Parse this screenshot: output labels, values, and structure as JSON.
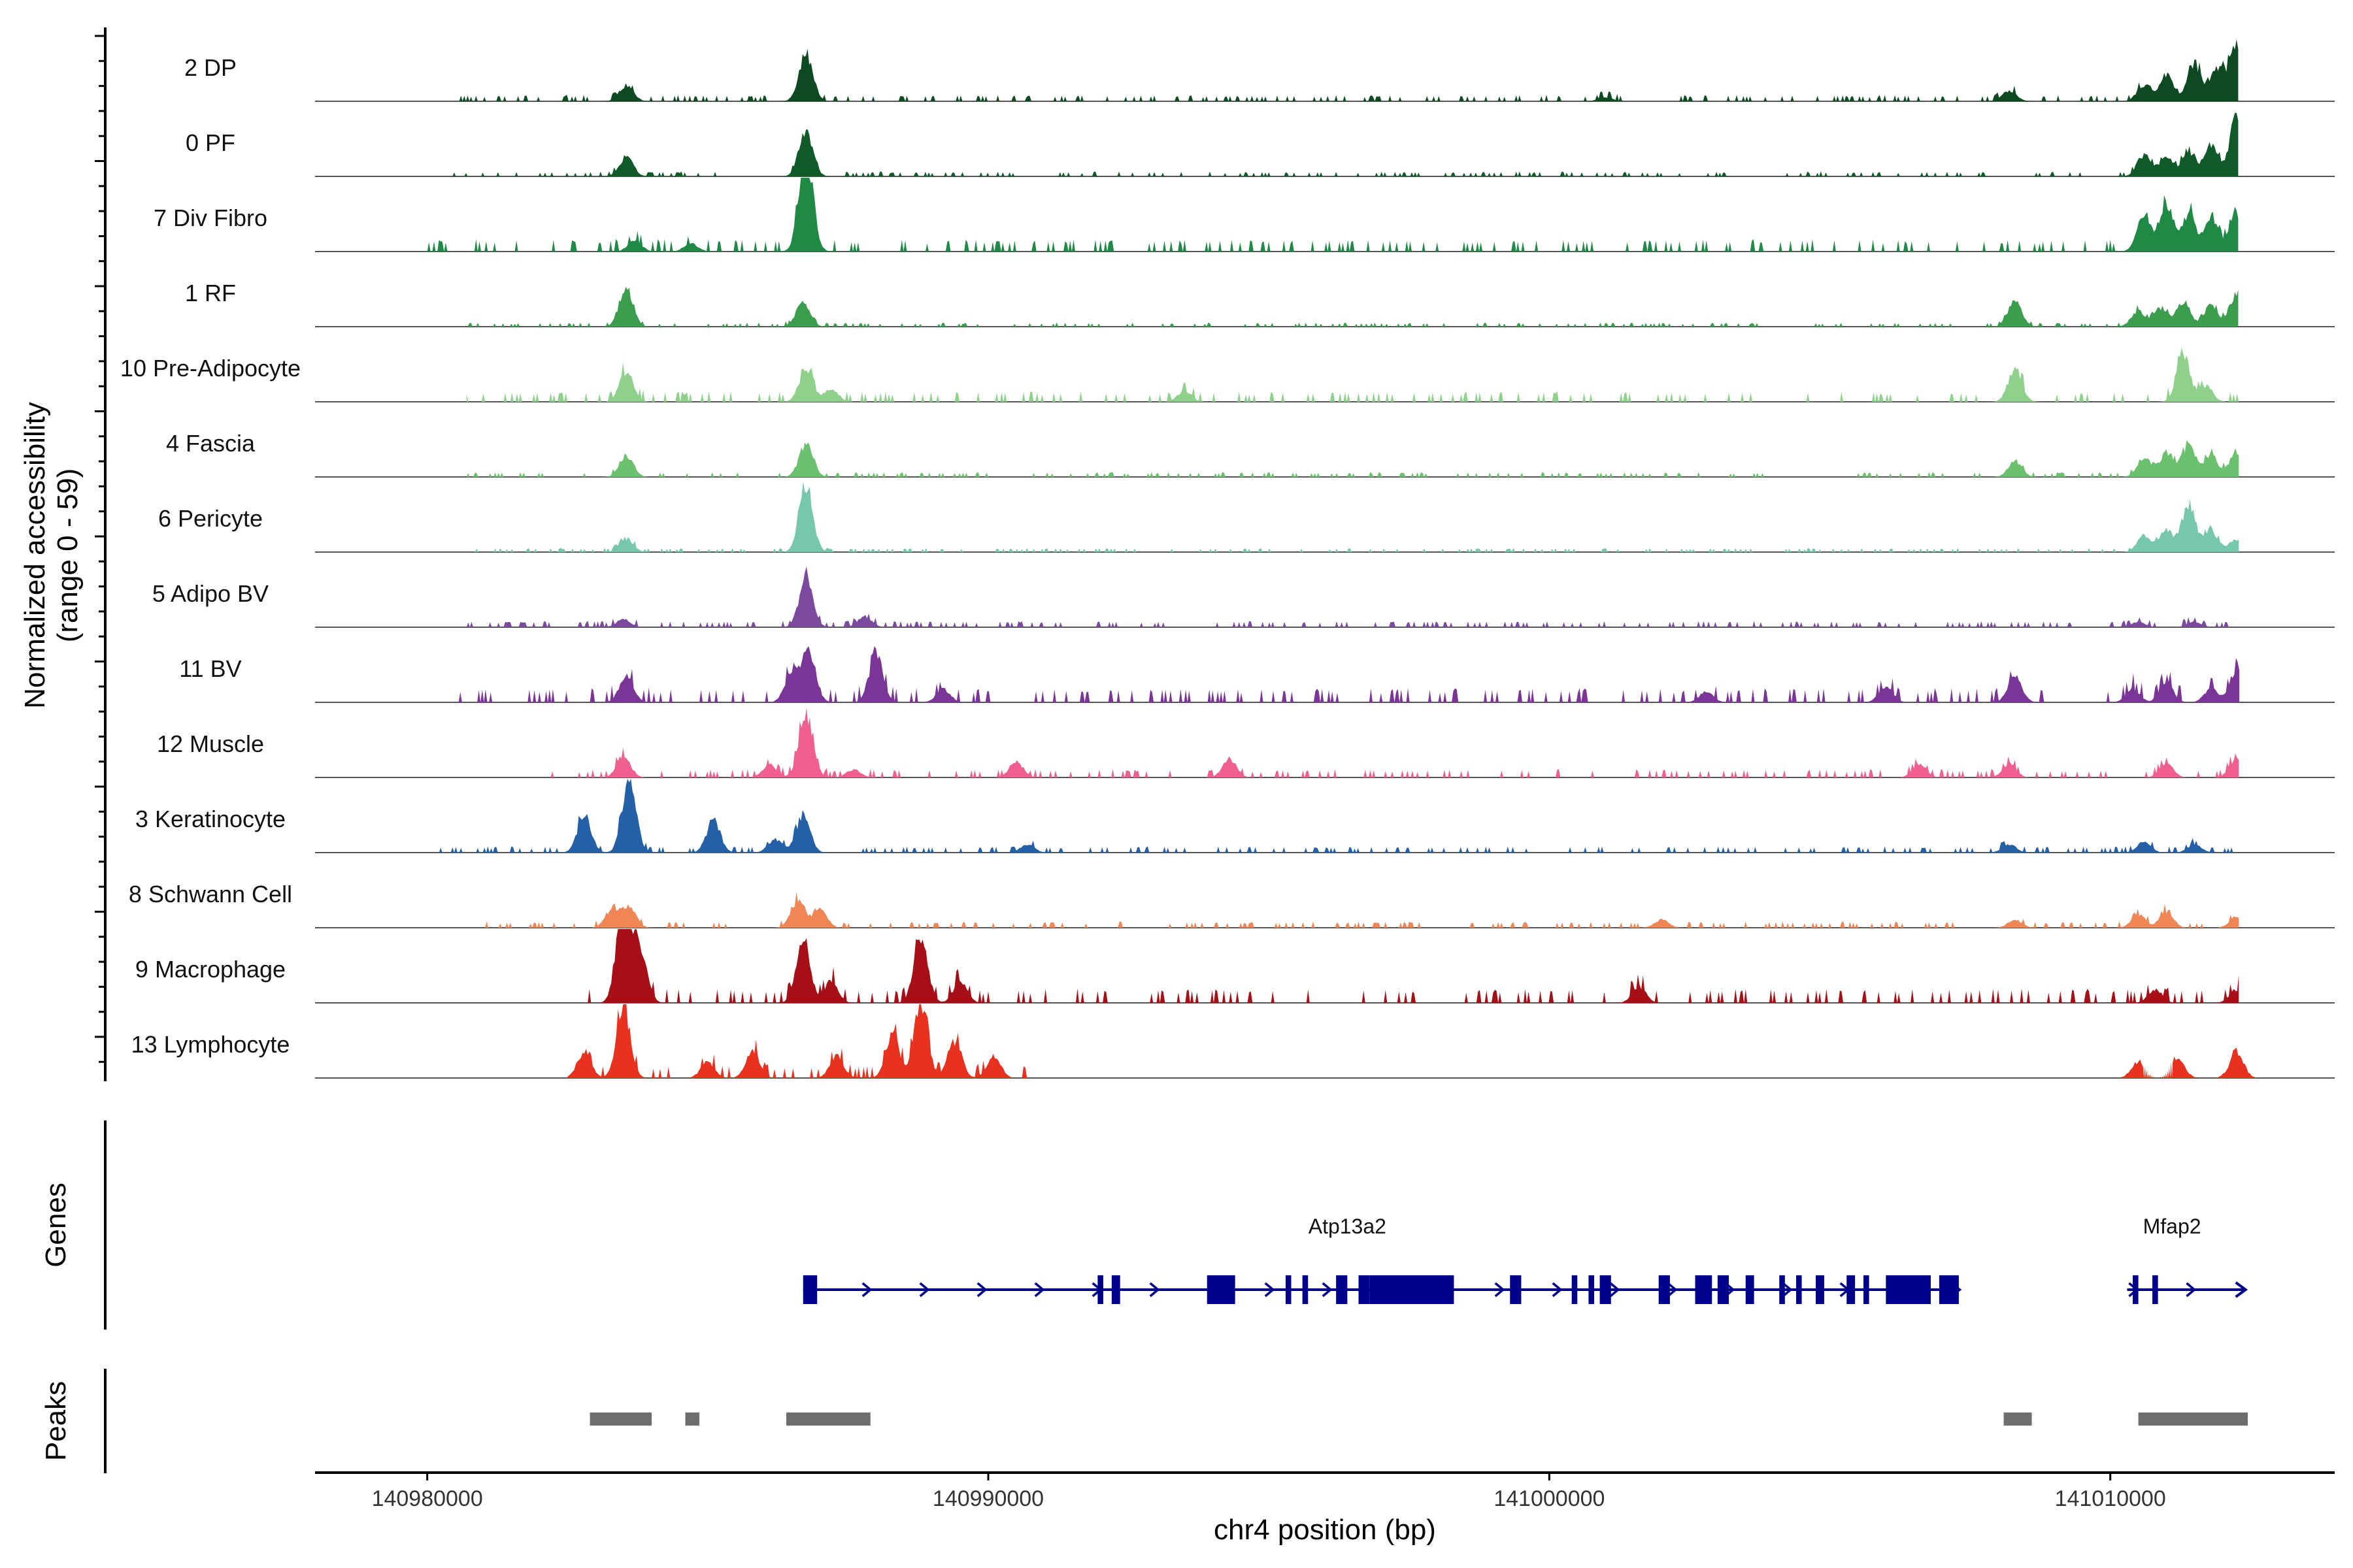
{
  "chart_data": {
    "type": "area",
    "title": "",
    "ylabel_line1": "Normalized accessibility",
    "ylabel_line2": "(range 0 - 59)",
    "y_range": [
      0,
      59
    ],
    "xlabel": "chr4 position (bp)",
    "xlim": [
      140978000,
      141014000
    ],
    "x_ticks": [
      140980000,
      140990000,
      141000000,
      141010000
    ],
    "x_tick_labels": [
      "140980000",
      "140990000",
      "141000000",
      "141010000"
    ],
    "genes_label": "Genes",
    "peaks_label": "Peaks",
    "tracks": [
      {
        "name": "2 DP",
        "color": "#0d4a21",
        "x_start": 140980300,
        "x_end": 141012300,
        "peaks": [
          [
            140983550,
            6
          ],
          [
            140986750,
            18
          ],
          [
            141001000,
            1.5
          ],
          [
            141008200,
            4
          ],
          [
            141010600,
            6
          ],
          [
            141011000,
            10
          ],
          [
            141011500,
            14
          ],
          [
            141011900,
            12
          ],
          [
            141012250,
            22
          ]
        ],
        "noise": 1.5
      },
      {
        "name": "0 PF",
        "color": "#0f5a28",
        "x_start": 140980300,
        "x_end": 141012300,
        "peaks": [
          [
            140983550,
            7
          ],
          [
            140986750,
            17
          ],
          [
            141010600,
            8
          ],
          [
            141011000,
            7
          ],
          [
            141011400,
            9
          ],
          [
            141011800,
            11
          ],
          [
            141012250,
            22
          ]
        ],
        "noise": 1.2
      },
      {
        "name": "7 Div Fibro",
        "color": "#1f8a45",
        "x_start": 140980000,
        "x_end": 141012300,
        "peaks": [
          [
            140983700,
            4
          ],
          [
            140986750,
            38
          ],
          [
            140984700,
            3
          ],
          [
            141010600,
            14
          ],
          [
            141011000,
            18
          ],
          [
            141011400,
            14
          ],
          [
            141011800,
            12
          ],
          [
            141012250,
            14
          ]
        ],
        "noise": 3
      },
      {
        "name": "1 RF",
        "color": "#3b9e4f",
        "x_start": 140980300,
        "x_end": 141012300,
        "peaks": [
          [
            140983550,
            14
          ],
          [
            140986700,
            9
          ],
          [
            141008300,
            10
          ],
          [
            141010500,
            6
          ],
          [
            141010900,
            7
          ],
          [
            141011300,
            9
          ],
          [
            141011800,
            8
          ],
          [
            141012250,
            12
          ]
        ],
        "noise": 1
      },
      {
        "name": "10 Pre-Adipocyte",
        "color": "#8fd18c",
        "x_start": 140980700,
        "x_end": 141012300,
        "peaks": [
          [
            140983550,
            11
          ],
          [
            140986750,
            12
          ],
          [
            140987200,
            5
          ],
          [
            141008300,
            12
          ],
          [
            141011300,
            16
          ],
          [
            141011700,
            6
          ],
          [
            140993500,
            4
          ]
        ],
        "noise": 2.5
      },
      {
        "name": "4 Fascia",
        "color": "#6cc16f",
        "x_start": 140980700,
        "x_end": 141012300,
        "peaks": [
          [
            140983550,
            8
          ],
          [
            140986750,
            12
          ],
          [
            141008300,
            6
          ],
          [
            141010600,
            7
          ],
          [
            141011000,
            9
          ],
          [
            141011400,
            12
          ],
          [
            141011800,
            8
          ],
          [
            141012250,
            9
          ]
        ],
        "noise": 1.2
      },
      {
        "name": "6 Pericyte",
        "color": "#76c7ae",
        "x_start": 140980700,
        "x_end": 141012300,
        "peaks": [
          [
            140983550,
            5
          ],
          [
            140986750,
            24
          ],
          [
            141010600,
            6
          ],
          [
            141011000,
            8
          ],
          [
            141011400,
            18
          ],
          [
            141011800,
            8
          ],
          [
            141012250,
            5
          ]
        ],
        "noise": 1
      },
      {
        "name": "5 Adipo BV",
        "color": "#7b4a9f",
        "x_start": 140980700,
        "x_end": 141012300,
        "peaks": [
          [
            140983500,
            3
          ],
          [
            140986750,
            18
          ],
          [
            140987800,
            4
          ],
          [
            141010500,
            2
          ],
          [
            141011500,
            2
          ]
        ],
        "noise": 1.5
      },
      {
        "name": "11 BV",
        "color": "#7a3596",
        "x_start": 140980200,
        "x_end": 141012300,
        "peaks": [
          [
            140983550,
            10
          ],
          [
            140986500,
            12
          ],
          [
            140986800,
            20
          ],
          [
            140988000,
            18
          ],
          [
            140989200,
            5
          ],
          [
            141002800,
            4
          ],
          [
            141006000,
            6
          ],
          [
            141008300,
            10
          ],
          [
            141010400,
            5
          ],
          [
            141011000,
            7
          ],
          [
            141011800,
            5
          ],
          [
            141012250,
            12
          ]
        ],
        "noise": 3.5
      },
      {
        "name": "12 Muscle",
        "color": "#f0608e",
        "x_start": 140982200,
        "x_end": 141012300,
        "peaks": [
          [
            140983500,
            8
          ],
          [
            140986100,
            5
          ],
          [
            140986750,
            24
          ],
          [
            140987600,
            3
          ],
          [
            140990500,
            6
          ],
          [
            140994300,
            7
          ],
          [
            141006600,
            5
          ],
          [
            141008200,
            5
          ],
          [
            141011000,
            5
          ],
          [
            141012250,
            7
          ]
        ],
        "noise": 2
      },
      {
        "name": "3 Keratinocyte",
        "color": "#2460a8",
        "x_start": 140980000,
        "x_end": 141012300,
        "peaks": [
          [
            140982800,
            14
          ],
          [
            140983600,
            28
          ],
          [
            140985100,
            12
          ],
          [
            140986200,
            5
          ],
          [
            140986700,
            14
          ],
          [
            140990700,
            3
          ],
          [
            141008200,
            3
          ],
          [
            141010600,
            4
          ],
          [
            141011500,
            3
          ]
        ],
        "noise": 1.5
      },
      {
        "name": "8 Schwann Cell",
        "color": "#ee8656",
        "x_start": 140980700,
        "x_end": 141012300,
        "peaks": [
          [
            140983300,
            7
          ],
          [
            140983600,
            8
          ],
          [
            140986600,
            10
          ],
          [
            140987000,
            7
          ],
          [
            141002000,
            3
          ],
          [
            141008300,
            3
          ],
          [
            141010500,
            5
          ],
          [
            141011000,
            6
          ],
          [
            141012250,
            4
          ]
        ],
        "noise": 1.5
      },
      {
        "name": "9 Macrophage",
        "color": "#a50f15",
        "x_start": 140982800,
        "x_end": 141012300,
        "peaks": [
          [
            140983500,
            42
          ],
          [
            140983800,
            20
          ],
          [
            140986700,
            24
          ],
          [
            140987200,
            8
          ],
          [
            140988800,
            24
          ],
          [
            140989500,
            8
          ],
          [
            141001600,
            6
          ],
          [
            141010800,
            5
          ],
          [
            141012250,
            5
          ]
        ],
        "noise": 3.5
      },
      {
        "name": "13 Lymphocyte",
        "color": "#e8311e",
        "x_start": 140982500,
        "x_end": 140990800,
        "peaks": [
          [
            140982800,
            10
          ],
          [
            140983500,
            26
          ],
          [
            140985000,
            6
          ],
          [
            140985800,
            10
          ],
          [
            140987300,
            8
          ],
          [
            140988300,
            16
          ],
          [
            140988800,
            28
          ],
          [
            140989400,
            14
          ],
          [
            140990100,
            8
          ],
          [
            141010500,
            6
          ],
          [
            141011200,
            8
          ],
          [
            141012250,
            10
          ]
        ],
        "noise": 3
      }
    ],
    "genes": [
      {
        "name": "Atp13a2",
        "strand": "+",
        "start": 140986700,
        "end": 141007300,
        "color": "#00008b",
        "exons": [
          [
            140986700,
            140986950
          ],
          [
            140991950,
            140992050
          ],
          [
            140992200,
            140992350
          ],
          [
            140993900,
            140994400
          ],
          [
            140995300,
            140995400
          ],
          [
            140995600,
            140995700
          ],
          [
            140996200,
            140996400
          ],
          [
            140996600,
            140996800
          ],
          [
            140996800,
            140998300
          ],
          [
            140999300,
            140999500
          ],
          [
            141000400,
            141000500
          ],
          [
            141000700,
            141000800
          ],
          [
            141000900,
            141001100
          ],
          [
            141001950,
            141002150
          ],
          [
            141002600,
            141002900
          ],
          [
            141003000,
            141003200
          ],
          [
            141003500,
            141003650
          ],
          [
            141004100,
            141004200
          ],
          [
            141004400,
            141004500
          ],
          [
            141004750,
            141004900
          ],
          [
            141005300,
            141005450
          ],
          [
            141005600,
            141005700
          ],
          [
            141006000,
            141006800
          ],
          [
            141006950,
            141007300
          ]
        ]
      },
      {
        "name": "Mfap2",
        "strand": "+",
        "start": 141010300,
        "end": 141012400,
        "color": "#00008b",
        "exons": [
          [
            141010400,
            141010500
          ],
          [
            141010750,
            141010850
          ]
        ]
      }
    ],
    "peaks": [
      {
        "start": 140982900,
        "end": 140984000
      },
      {
        "start": 140984600,
        "end": 140984850
      },
      {
        "start": 140986400,
        "end": 140987900
      },
      {
        "start": 141008100,
        "end": 141008600
      },
      {
        "start": 141010500,
        "end": 141012450
      }
    ]
  }
}
